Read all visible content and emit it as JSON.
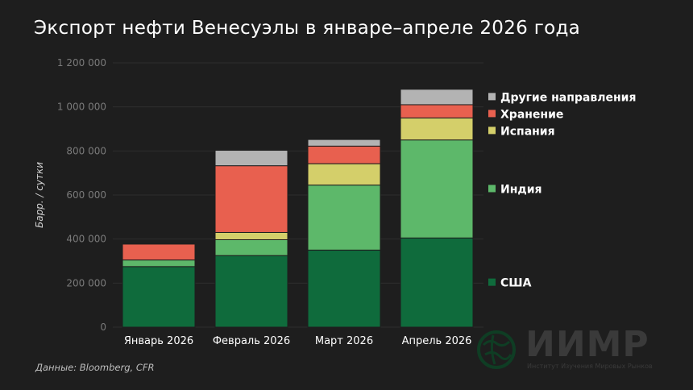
{
  "title": "Экспорт нефти Венесуэлы в январе–апреле 2026 года",
  "source": "Данные: Bloomberg, CFR",
  "logo": {
    "word": "ИИМР",
    "subtitle": "Институт Изучения Мировых Рынков",
    "icon": "globe-icon"
  },
  "chart_data": {
    "type": "bar",
    "stacked": true,
    "ylabel": "Барр. / сутки",
    "ylim": [
      0,
      1200000
    ],
    "yticks": [
      0,
      200000,
      400000,
      600000,
      800000,
      1000000,
      1200000
    ],
    "ytick_labels": [
      "0",
      "200 000",
      "400 000",
      "600 000",
      "800 000",
      "1 000 000",
      "1 200 000"
    ],
    "categories": [
      "Январь 2026",
      "Февраль 2026",
      "Март 2026",
      "Апрель 2026"
    ],
    "series": [
      {
        "name": "США",
        "color": "#0f6b3c",
        "values": [
          275000,
          325000,
          350000,
          405000
        ]
      },
      {
        "name": "Индия",
        "color": "#5db86a",
        "values": [
          30000,
          72000,
          295000,
          445000
        ]
      },
      {
        "name": "Испания",
        "color": "#d4cf6a",
        "values": [
          0,
          33000,
          97000,
          100000
        ]
      },
      {
        "name": "Хранение",
        "color": "#e8604f",
        "values": [
          72000,
          303000,
          80000,
          60000
        ]
      },
      {
        "name": "Другие направления",
        "color": "#b3b3b3",
        "values": [
          0,
          70000,
          30000,
          70000
        ]
      }
    ],
    "grid": "horizontal",
    "legend_position": "right"
  }
}
